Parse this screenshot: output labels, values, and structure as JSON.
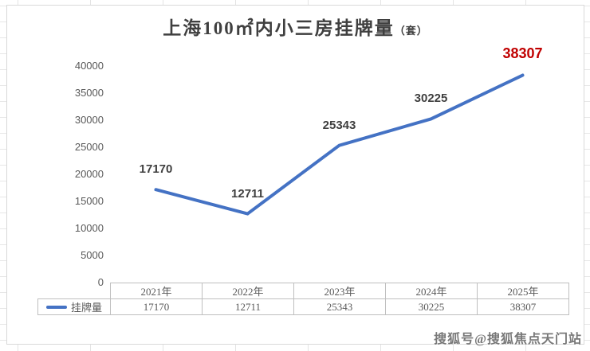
{
  "chart": {
    "title_main": "上海100㎡内小三房挂牌量",
    "title_unit": "（套）"
  },
  "chart_data": {
    "type": "line",
    "title": "上海100㎡内小三房挂牌量（套）",
    "categories": [
      "2021年",
      "2022年",
      "2023年",
      "2024年",
      "2025年"
    ],
    "series": [
      {
        "name": "挂牌量",
        "values": [
          17170,
          12711,
          25343,
          30225,
          38307
        ]
      }
    ],
    "xlabel": "",
    "ylabel": "",
    "ylim": [
      0,
      40000
    ],
    "yticks": [
      0,
      5000,
      10000,
      15000,
      20000,
      25000,
      30000,
      35000,
      40000
    ],
    "grid": false,
    "markers": false,
    "legend_position": "data-table-left",
    "line_color": "#4472c4",
    "data_label_color": "#3f3f3f",
    "last_label_color": "#c00000",
    "data_labels": [
      "17170",
      "12711",
      "25343",
      "30225",
      "38307"
    ]
  },
  "table": {
    "legend_label": "挂牌量",
    "columns": [
      "2021年",
      "2022年",
      "2023年",
      "2024年",
      "2025年"
    ],
    "values": [
      "17170",
      "12711",
      "25343",
      "30225",
      "38307"
    ]
  },
  "watermark": {
    "text": "搜狐号@搜狐焦点天门站"
  }
}
